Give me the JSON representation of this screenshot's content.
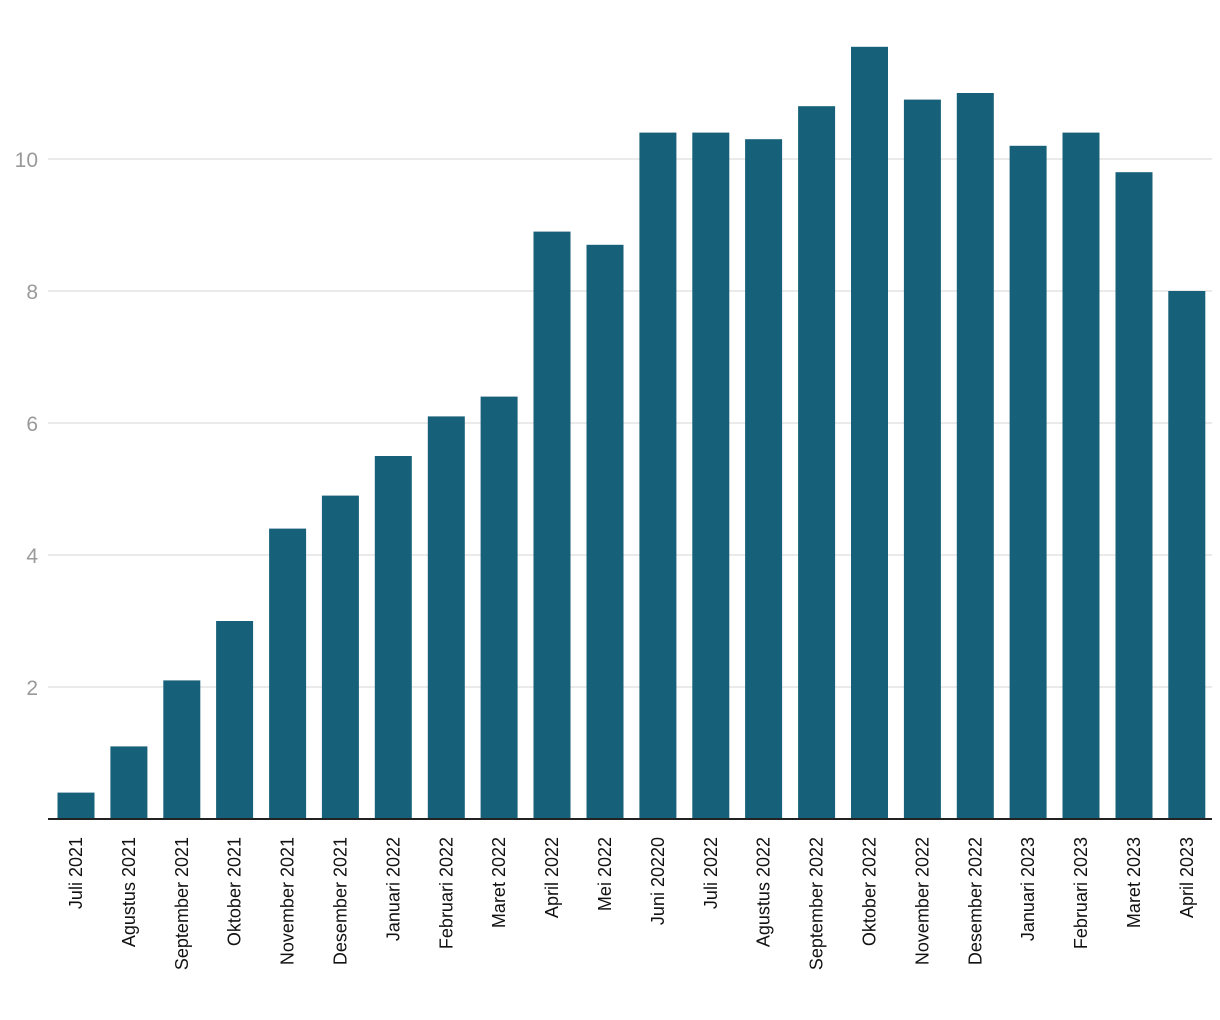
{
  "chart_data": {
    "type": "bar",
    "title": "",
    "xlabel": "",
    "ylabel": "",
    "categories": [
      "Juli 2021",
      "Agustus 2021",
      "September 2021",
      "Oktober 2021",
      "November 2021",
      "Desember 2021",
      "Januari 2022",
      "Februari 2022",
      "Maret 2022",
      "April 2022",
      "Mei 2022",
      "Juni 20220",
      "Juli 2022",
      "Agustus 2022",
      "September 2022",
      "Oktober 2022",
      "November 2022",
      "Desember 2022",
      "Januari 2023",
      "Februari 2023",
      "Maret 2023",
      "April 2023"
    ],
    "values": [
      0.4,
      1.1,
      2.1,
      3.0,
      4.4,
      4.9,
      5.5,
      6.1,
      6.4,
      8.9,
      8.7,
      10.4,
      10.4,
      10.3,
      10.8,
      11.7,
      10.9,
      11.0,
      10.2,
      10.4,
      9.8,
      8.0
    ],
    "ylim": [
      0,
      12
    ],
    "yticks": [
      2,
      4,
      6,
      8,
      10
    ],
    "grid": true,
    "legend": "none",
    "colors": {
      "bar": "#176079",
      "grid": "#e3e3e3",
      "baseline": "#222222",
      "y_tick_text": "#9a9a9a",
      "x_tick_text": "#111111"
    }
  }
}
